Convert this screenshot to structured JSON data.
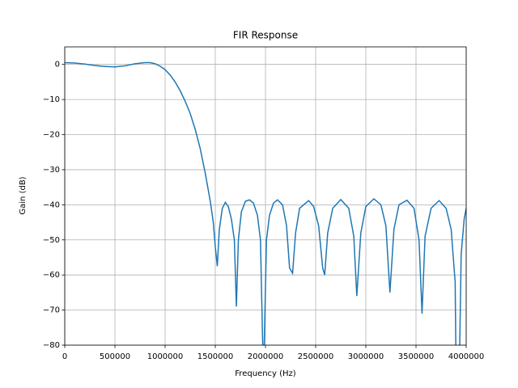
{
  "chart_data": {
    "type": "line",
    "title": "FIR Response",
    "xlabel": "Frequency (Hz)",
    "ylabel": "Gain (dB)",
    "grid": true,
    "xlim": [
      0,
      4000000
    ],
    "ylim": [
      -80,
      5
    ],
    "xticks": [
      0,
      500000,
      1000000,
      1500000,
      2000000,
      2500000,
      3000000,
      3500000,
      4000000
    ],
    "yticks": [
      {
        "value": 0,
        "label": "0"
      },
      {
        "value": -10,
        "label": "−10"
      },
      {
        "value": -20,
        "label": "−20"
      },
      {
        "value": -30,
        "label": "−30"
      },
      {
        "value": -40,
        "label": "−40"
      },
      {
        "value": -50,
        "label": "−50"
      },
      {
        "value": -60,
        "label": "−60"
      },
      {
        "value": -70,
        "label": "−70"
      },
      {
        "value": -80,
        "label": "−80"
      }
    ],
    "series": [
      {
        "color": "#1f77b4",
        "x": [
          0,
          100000,
          200000,
          300000,
          400000,
          500000,
          600000,
          700000,
          800000,
          850000,
          900000,
          950000,
          1000000,
          1050000,
          1100000,
          1150000,
          1200000,
          1250000,
          1300000,
          1350000,
          1400000,
          1450000,
          1480000,
          1500000,
          1520000,
          1540000,
          1570000,
          1600000,
          1630000,
          1660000,
          1690000,
          1710000,
          1730000,
          1760000,
          1800000,
          1840000,
          1880000,
          1920000,
          1950000,
          1980000,
          2010000,
          2040000,
          2080000,
          2120000,
          2170000,
          2210000,
          2240000,
          2270000,
          2300000,
          2340000,
          2430000,
          2480000,
          2530000,
          2570000,
          2590000,
          2620000,
          2670000,
          2750000,
          2830000,
          2880000,
          2910000,
          2950000,
          3000000,
          3080000,
          3150000,
          3200000,
          3240000,
          3280000,
          3330000,
          3410000,
          3480000,
          3530000,
          3560000,
          3590000,
          3650000,
          3730000,
          3800000,
          3850000,
          3890000,
          3900000,
          3930000,
          3950000,
          3980000,
          4000000
        ],
        "values": [
          0.5,
          0.4,
          0.1,
          -0.3,
          -0.6,
          -0.7,
          -0.4,
          0.2,
          0.5,
          0.5,
          0.2,
          -0.5,
          -1.5,
          -3,
          -5,
          -7.5,
          -10.5,
          -14,
          -18.5,
          -24,
          -31,
          -39,
          -45,
          -52,
          -57.5,
          -47,
          -41,
          -39.3,
          -40.5,
          -44,
          -50,
          -69,
          -50,
          -42,
          -39,
          -38.6,
          -39.5,
          -43,
          -50,
          -90,
          -50,
          -43,
          -39.5,
          -38.6,
          -40,
          -46,
          -58,
          -59.5,
          -48,
          -41,
          -38.8,
          -40.5,
          -46,
          -58,
          -60,
          -48,
          -41,
          -38.5,
          -41,
          -49,
          -66,
          -48,
          -40.5,
          -38.3,
          -40,
          -46,
          -65,
          -47,
          -40,
          -38.7,
          -41,
          -50,
          -71,
          -49,
          -41,
          -38.8,
          -41,
          -47,
          -62,
          -90,
          -90,
          -54,
          -44,
          -41
        ]
      }
    ]
  }
}
